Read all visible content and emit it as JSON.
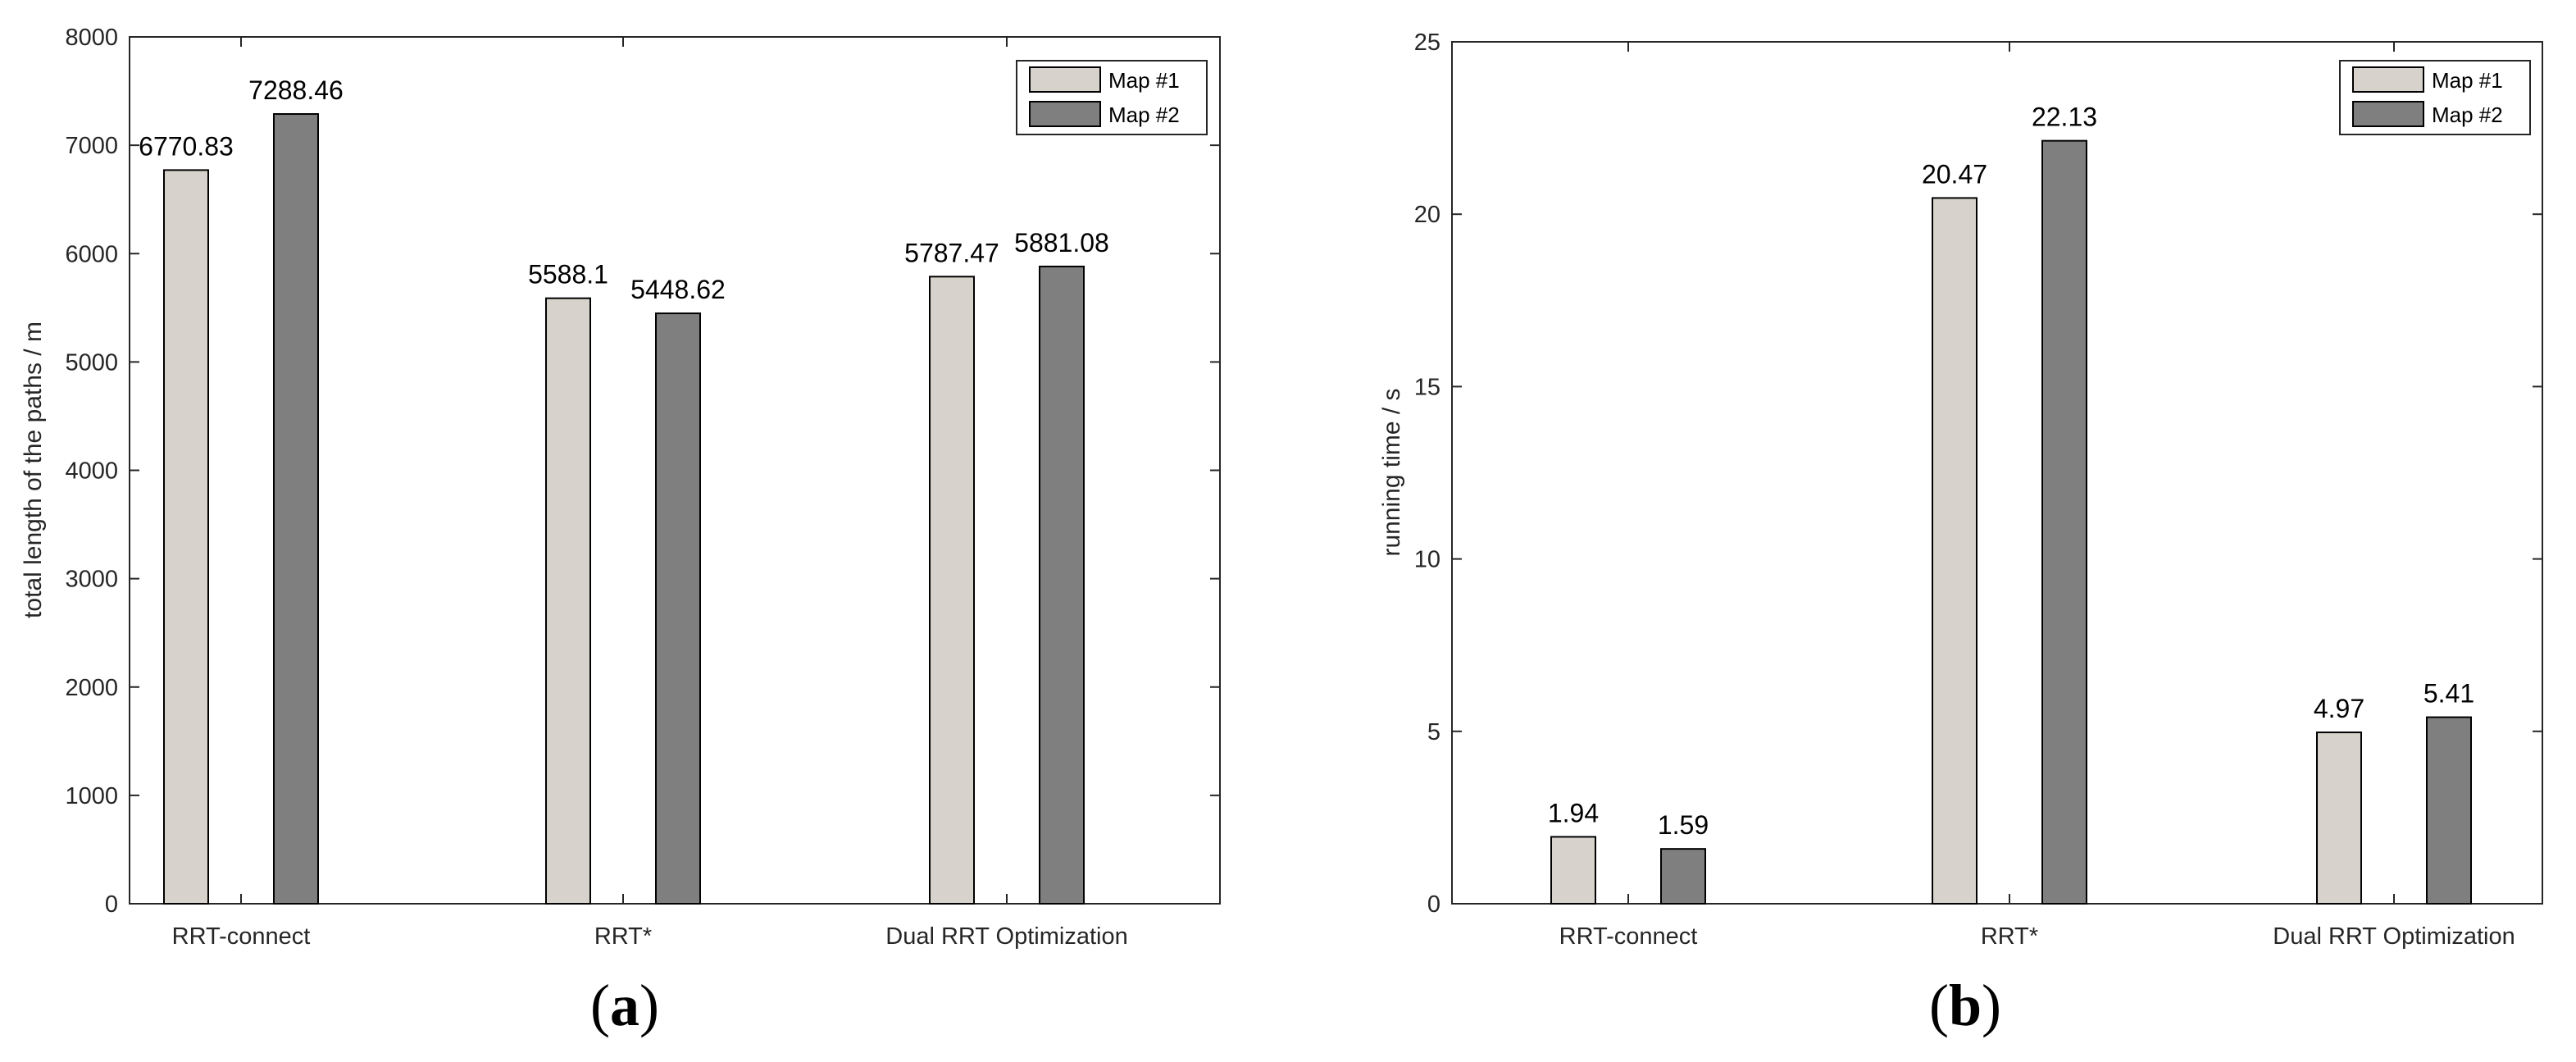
{
  "chart_data": [
    {
      "type": "bar",
      "panel_label": "a",
      "title": "",
      "categories": [
        "RRT-connect",
        "RRT*",
        "Dual RRT Optimization"
      ],
      "series": [
        {
          "name": "Map #1",
          "color": "#d7d2cb",
          "values": [
            6770.83,
            5588.1,
            5787.47
          ],
          "labels": [
            "6770.83",
            "5588.1",
            "5787.47"
          ]
        },
        {
          "name": "Map #2",
          "color": "#7f7f7f",
          "values": [
            7288.46,
            5448.62,
            5881.08
          ],
          "labels": [
            "7288.46",
            "5448.62",
            "5881.08"
          ]
        }
      ],
      "xlabel": "",
      "ylabel": "total length of the paths / m",
      "ylim": [
        0,
        8000
      ],
      "yticks": [
        "0",
        "1000",
        "2000",
        "3000",
        "4000",
        "5000",
        "6000",
        "7000",
        "8000"
      ],
      "legend_position": "top-right",
      "grid": false
    },
    {
      "type": "bar",
      "panel_label": "b",
      "title": "",
      "categories": [
        "RRT-connect",
        "RRT*",
        "Dual RRT Optimization"
      ],
      "series": [
        {
          "name": "Map #1",
          "color": "#d7d2cb",
          "values": [
            1.94,
            20.47,
            4.97
          ],
          "labels": [
            "1.94",
            "20.47",
            "4.97"
          ]
        },
        {
          "name": "Map #2",
          "color": "#7f7f7f",
          "values": [
            1.59,
            22.13,
            5.41
          ],
          "labels": [
            "1.59",
            "22.13",
            "5.41"
          ]
        }
      ],
      "xlabel": "",
      "ylabel": "running time / s",
      "ylim": [
        0,
        25
      ],
      "yticks": [
        "0",
        "5",
        "10",
        "15",
        "20",
        "25"
      ],
      "legend_position": "top-right",
      "grid": false
    }
  ]
}
